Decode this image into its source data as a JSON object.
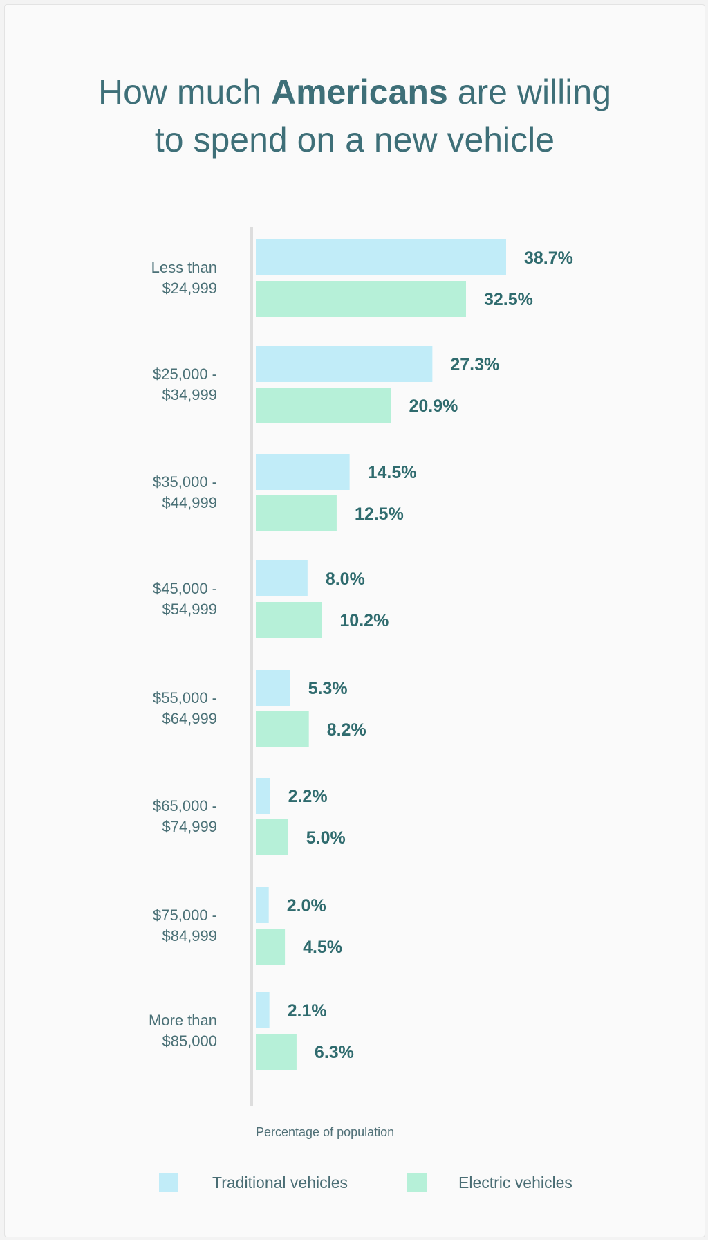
{
  "title": {
    "line1_pre": "How much",
    "line1_bold": "Americans",
    "line1_post": "are willing",
    "line2": "to spend on a new vehicle"
  },
  "colors": {
    "traditional": "#c1ecf8",
    "electric": "#b6f0d8",
    "label_text": "#2f6b6e",
    "category_text": "#4a7076",
    "axis": "#dddddd"
  },
  "chart_data": {
    "type": "bar",
    "orientation": "horizontal",
    "categories": [
      [
        "Less than",
        "$24,999"
      ],
      [
        "$25,000 -",
        "$34,999"
      ],
      [
        "$35,000 -",
        "$44,999"
      ],
      [
        "$45,000 -",
        "$54,999"
      ],
      [
        "$55,000 -",
        "$64,999"
      ],
      [
        "$65,000 -",
        "$74,999"
      ],
      [
        "$75,000 -",
        "$84,999"
      ],
      [
        "More than",
        "$85,000"
      ]
    ],
    "series": [
      {
        "name": "Traditional vehicles",
        "values": [
          38.7,
          27.3,
          14.5,
          8.0,
          5.3,
          2.2,
          2.0,
          2.1
        ],
        "labels": [
          "38.7%",
          "27.3%",
          "14.5%",
          "8.0%",
          "5.3%",
          "2.2%",
          "2.0%",
          "2.1%"
        ]
      },
      {
        "name": "Electric vehicles",
        "values": [
          32.5,
          20.9,
          12.5,
          10.2,
          8.2,
          5.0,
          4.5,
          6.3
        ],
        "labels": [
          "32.5%",
          "20.9%",
          "12.5%",
          "10.2%",
          "8.2%",
          "5.0%",
          "4.5%",
          "6.3%"
        ]
      }
    ],
    "xlabel": "Percentage of population",
    "xlim": [
      0,
      40
    ],
    "grid": false,
    "legend_position": "bottom"
  },
  "legend": {
    "traditional": "Traditional vehicles",
    "electric": "Electric vehicles"
  }
}
